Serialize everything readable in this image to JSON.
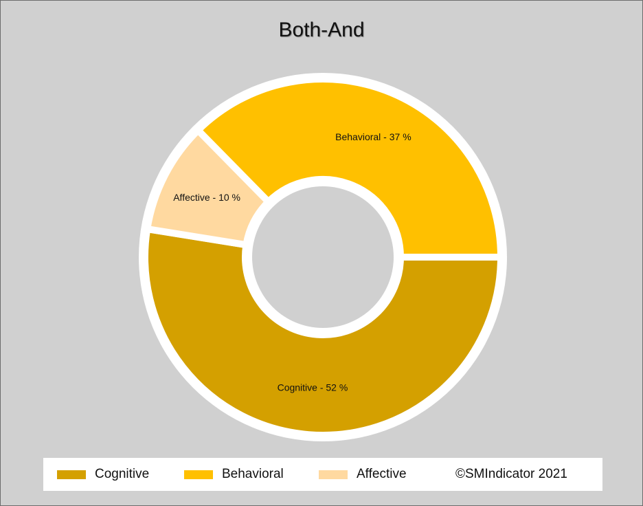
{
  "chart_data": {
    "type": "pie",
    "title": "Both-And",
    "donut": true,
    "start_angle_deg": 0,
    "direction": "clockwise",
    "slices": [
      {
        "name": "Cognitive",
        "value": 52,
        "label": "Cognitive - 52 %",
        "color": "#d4a000"
      },
      {
        "name": "Affective",
        "value": 10,
        "label": "Affective - 10 %",
        "color": "#ffd9a0"
      },
      {
        "name": "Behavioral",
        "value": 37,
        "label": "Behavioral - 37 %",
        "color": "#ffc000"
      }
    ],
    "legend": {
      "placement": "bottom",
      "entries": [
        {
          "name": "Cognitive",
          "color": "#d4a000"
        },
        {
          "name": "Behavioral",
          "color": "#ffc000"
        },
        {
          "name": "Affective",
          "color": "#ffd9a0"
        }
      ]
    },
    "copyright": "©SMIndicator 2021"
  },
  "colors": {
    "background": "#d0d0d0",
    "slice_separator": "#ffffff"
  }
}
